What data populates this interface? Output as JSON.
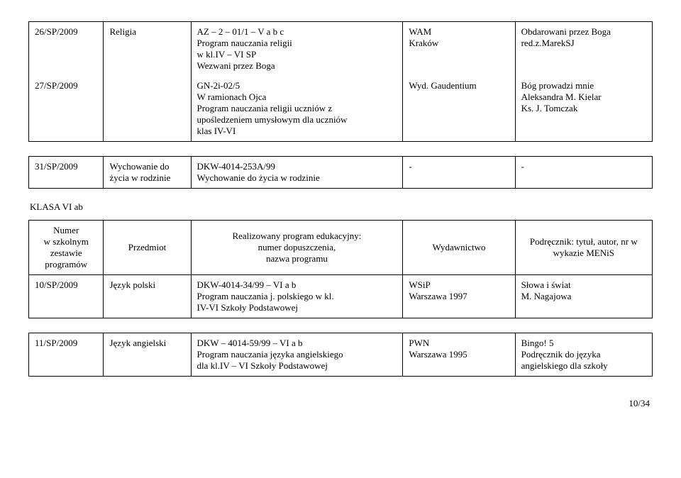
{
  "table1": {
    "rows": [
      {
        "c1": "26/SP/2009",
        "c2": "Religia",
        "c3": "AZ – 2 – 01/1 – V a b c\nProgram nauczania religii\nw kl.IV – VI SP\nWezwani przez Boga",
        "c4": "WAM\nKraków",
        "c5": "Obdarowani przez Boga\nred.z.MarekSJ"
      },
      {
        "c1": "27/SP/2009",
        "c2": "",
        "c3": "GN-2i-02/5\nW ramionach Ojca\nProgram nauczania religii uczniów z\nupośledzeniem umysłowym dla uczniów\nklas IV-VI",
        "c4": "Wyd. Gaudentium",
        "c5": "Bóg prowadzi mnie\nAleksandra M. Kielar\nKs. J. Tomczak"
      }
    ]
  },
  "table2": {
    "rows": [
      {
        "c1": "31/SP/2009",
        "c2": "Wychowanie do\nżycia w rodzinie",
        "c3": "DKW-4014-253A/99\nWychowanie do życia w rodzinie",
        "c4": "-",
        "c5": "-"
      }
    ]
  },
  "section_title": "KLASA VI ab",
  "table3": {
    "headers": {
      "c1": "Numer\nw szkolnym\nzestawie\nprogramów",
      "c2": "Przedmiot",
      "c3": "Realizowany program edukacyjny:\nnumer dopuszczenia,\nnazwa programu",
      "c4": "Wydawnictwo",
      "c5": "Podręcznik: tytuł, autor, nr w\nwykazie MENiS"
    },
    "rows": [
      {
        "c1": "10/SP/2009",
        "c2": "Język polski",
        "c3": "DKW-4014-34/99 – VI a b\nProgram nauczania j. polskiego w kl.\nIV-VI Szkoły Podstawowej",
        "c4": "WSiP\nWarszawa 1997",
        "c5": "Słowa i świat\nM. Nagajowa"
      }
    ]
  },
  "table4": {
    "rows": [
      {
        "c1": "11/SP/2009",
        "c2": "Język angielski",
        "c3": "DKW – 4014-59/99 – VI a b\nProgram nauczania języka angielskiego\ndla kl.IV – VI Szkoły Podstawowej",
        "c4": "PWN\nWarszawa 1995",
        "c5": "Bingo! 5\nPodręcznik do języka\nangielskiego dla szkoły"
      }
    ]
  },
  "footer": "10/34"
}
